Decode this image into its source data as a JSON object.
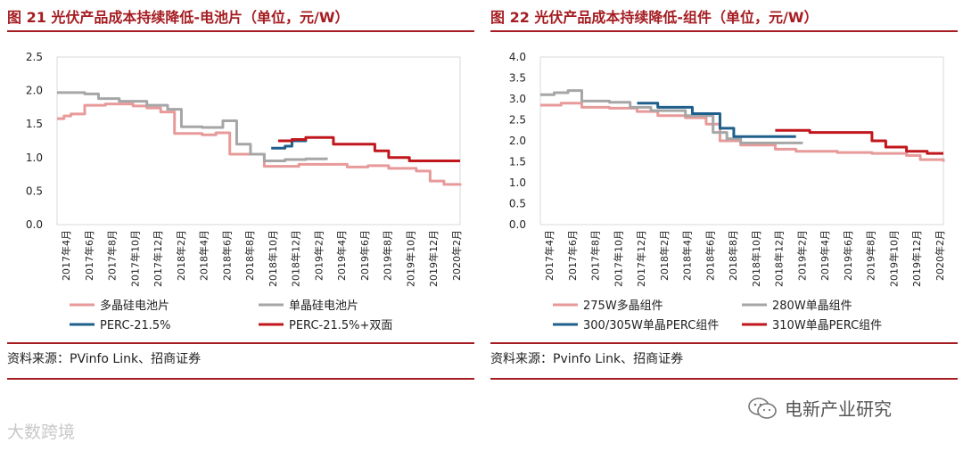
{
  "watermarks": {
    "left": "大数跨境",
    "right": "电新产业研究"
  },
  "chart_data": [
    {
      "type": "line",
      "title": "图 21 光伏产品成本持续降低-电池片（单位，元/W）",
      "source": "资料来源：PVinfo Link、招商证券",
      "ylim": [
        0,
        2.5
      ],
      "yticks": [
        "2.5",
        "2.0",
        "1.5",
        "1.0",
        "0.5",
        "0.0"
      ],
      "x_start": 2017.25,
      "x_end": 2020.167,
      "x_tick_labels": [
        "2017年4月",
        "2017年6月",
        "2017年8月",
        "2017年10月",
        "2017年12月",
        "2018年2月",
        "2018年4月",
        "2018年6月",
        "2018年8月",
        "2018年10月",
        "2018年12月",
        "2019年2月",
        "2019年4月",
        "2019年6月",
        "2019年8月",
        "2019年10月",
        "2019年12月",
        "2020年2月"
      ],
      "series": [
        {
          "name": "多晶硅电池片",
          "color": "#e89a9a",
          "points": [
            [
              2017.25,
              1.58
            ],
            [
              2017.3,
              1.62
            ],
            [
              2017.35,
              1.65
            ],
            [
              2017.45,
              1.78
            ],
            [
              2017.6,
              1.8
            ],
            [
              2017.8,
              1.77
            ],
            [
              2017.9,
              1.74
            ],
            [
              2018.0,
              1.68
            ],
            [
              2018.1,
              1.36
            ],
            [
              2018.3,
              1.34
            ],
            [
              2018.4,
              1.37
            ],
            [
              2018.5,
              1.05
            ],
            [
              2018.65,
              1.05
            ],
            [
              2018.75,
              0.87
            ],
            [
              2019.0,
              0.9
            ],
            [
              2019.2,
              0.9
            ],
            [
              2019.35,
              0.86
            ],
            [
              2019.5,
              0.88
            ],
            [
              2019.65,
              0.84
            ],
            [
              2019.85,
              0.8
            ],
            [
              2019.95,
              0.65
            ],
            [
              2020.05,
              0.6
            ],
            [
              2020.167,
              0.58
            ]
          ]
        },
        {
          "name": "单晶硅电池片",
          "color": "#a6a6a6",
          "points": [
            [
              2017.25,
              1.97
            ],
            [
              2017.45,
              1.95
            ],
            [
              2017.55,
              1.88
            ],
            [
              2017.7,
              1.84
            ],
            [
              2017.9,
              1.78
            ],
            [
              2018.05,
              1.72
            ],
            [
              2018.15,
              1.46
            ],
            [
              2018.3,
              1.45
            ],
            [
              2018.45,
              1.55
            ],
            [
              2018.55,
              1.2
            ],
            [
              2018.65,
              1.05
            ],
            [
              2018.75,
              0.95
            ],
            [
              2018.9,
              0.97
            ],
            [
              2019.05,
              0.98
            ],
            [
              2019.2,
              1.0
            ]
          ]
        },
        {
          "name": "PERC-21.5%",
          "color": "#1f5f8b",
          "points": [
            [
              2018.8,
              1.14
            ],
            [
              2018.9,
              1.17
            ],
            [
              2018.95,
              1.25
            ],
            [
              2019.05,
              1.27
            ]
          ]
        },
        {
          "name": "PERC-21.5%+双面",
          "color": "#c0161c",
          "points": [
            [
              2018.85,
              1.25
            ],
            [
              2018.95,
              1.27
            ],
            [
              2019.05,
              1.3
            ],
            [
              2019.15,
              1.3
            ],
            [
              2019.25,
              1.2
            ],
            [
              2019.45,
              1.2
            ],
            [
              2019.55,
              1.1
            ],
            [
              2019.65,
              1.0
            ],
            [
              2019.8,
              0.95
            ],
            [
              2020.167,
              0.95
            ]
          ]
        }
      ]
    },
    {
      "type": "line",
      "title": "图 22 光伏产品成本持续降低-组件（单位，元/W）",
      "source": "资料来源：Pvinfo Link、招商证券",
      "ylim": [
        0,
        4.0
      ],
      "yticks": [
        "4.0",
        "3.5",
        "3.0",
        "2.5",
        "2.0",
        "1.5",
        "1.0",
        "0.5",
        "0.0"
      ],
      "x_start": 2017.25,
      "x_end": 2020.167,
      "x_tick_labels": [
        "2017年4月",
        "2017年6月",
        "2017年8月",
        "2017年10月",
        "2017年12月",
        "2018年2月",
        "2018年4月",
        "2018年6月",
        "2018年8月",
        "2018年10月",
        "2018年12月",
        "2019年2月",
        "2019年4月",
        "2019年6月",
        "2019年8月",
        "2019年10月",
        "2019年12月",
        "2020年2月"
      ],
      "series": [
        {
          "name": "275W多晶组件",
          "color": "#e89a9a",
          "points": [
            [
              2017.25,
              2.85
            ],
            [
              2017.4,
              2.9
            ],
            [
              2017.55,
              2.8
            ],
            [
              2017.75,
              2.78
            ],
            [
              2017.95,
              2.7
            ],
            [
              2018.1,
              2.6
            ],
            [
              2018.3,
              2.55
            ],
            [
              2018.45,
              2.4
            ],
            [
              2018.55,
              2.0
            ],
            [
              2018.7,
              1.9
            ],
            [
              2018.95,
              1.8
            ],
            [
              2019.1,
              1.75
            ],
            [
              2019.4,
              1.72
            ],
            [
              2019.65,
              1.7
            ],
            [
              2019.9,
              1.65
            ],
            [
              2020.0,
              1.55
            ],
            [
              2020.167,
              1.5
            ]
          ]
        },
        {
          "name": "280W单晶组件",
          "color": "#a6a6a6",
          "points": [
            [
              2017.25,
              3.1
            ],
            [
              2017.35,
              3.15
            ],
            [
              2017.45,
              3.2
            ],
            [
              2017.55,
              2.95
            ],
            [
              2017.75,
              2.92
            ],
            [
              2017.9,
              2.8
            ],
            [
              2018.05,
              2.72
            ],
            [
              2018.3,
              2.6
            ],
            [
              2018.5,
              2.2
            ],
            [
              2018.6,
              2.05
            ],
            [
              2018.7,
              1.95
            ],
            [
              2019.15,
              1.95
            ]
          ]
        },
        {
          "name": "300/305W单晶PERC组件",
          "color": "#1f5f8b",
          "points": [
            [
              2017.95,
              2.9
            ],
            [
              2018.1,
              2.8
            ],
            [
              2018.35,
              2.65
            ],
            [
              2018.55,
              2.3
            ],
            [
              2018.65,
              2.1
            ],
            [
              2019.1,
              2.1
            ]
          ]
        },
        {
          "name": "310W单晶PERC组件",
          "color": "#c0161c",
          "points": [
            [
              2018.95,
              2.25
            ],
            [
              2019.15,
              2.25
            ],
            [
              2019.2,
              2.2
            ],
            [
              2019.6,
              2.2
            ],
            [
              2019.65,
              2.0
            ],
            [
              2019.75,
              1.85
            ],
            [
              2019.9,
              1.75
            ],
            [
              2020.05,
              1.7
            ],
            [
              2020.167,
              1.7
            ]
          ]
        }
      ]
    }
  ]
}
